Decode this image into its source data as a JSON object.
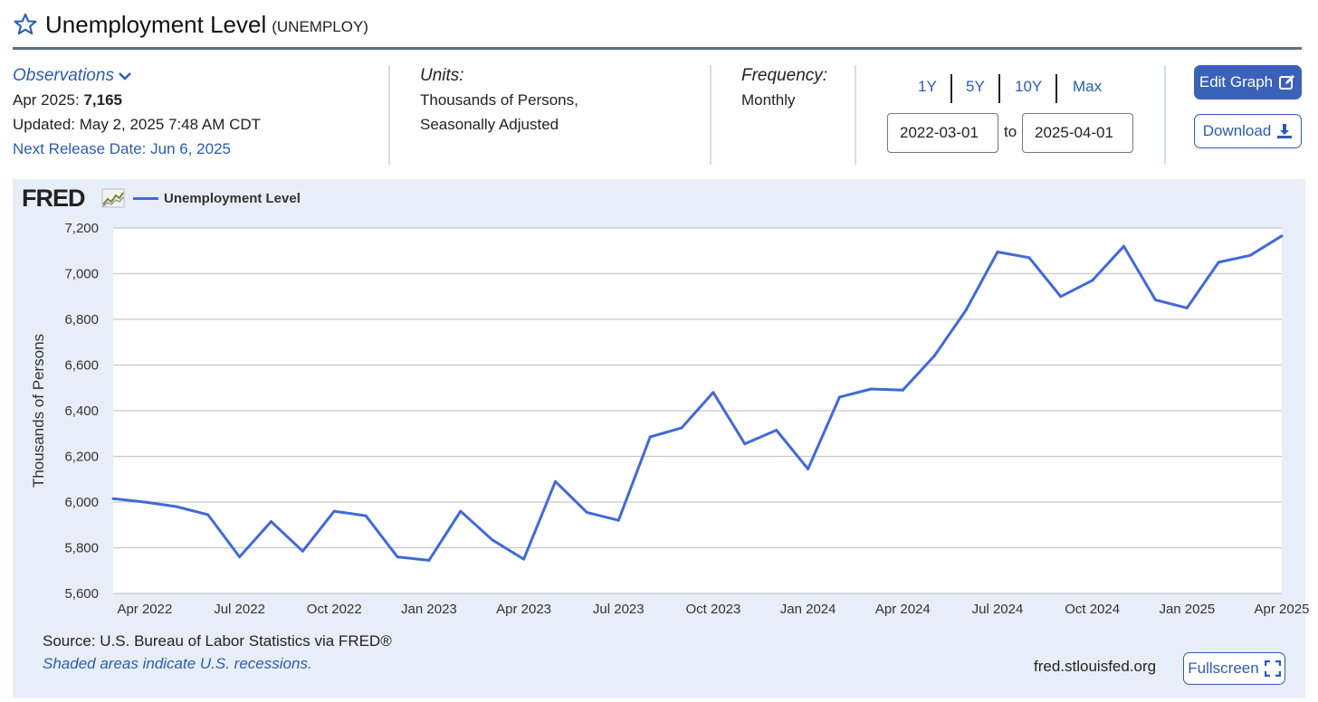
{
  "header": {
    "title": "Unemployment Level",
    "series_id": "(UNEMPLOY)"
  },
  "observations": {
    "link_label": "Observations",
    "latest_label": "Apr 2025:",
    "latest_value": "7,165",
    "updated": "Updated: May 2, 2025 7:48 AM CDT",
    "next_release": "Next Release Date: Jun 6, 2025"
  },
  "units": {
    "heading": "Units:",
    "line1": "Thousands of Persons,",
    "line2": "Seasonally Adjusted"
  },
  "frequency": {
    "heading": "Frequency:",
    "value": "Monthly"
  },
  "range": {
    "buttons": [
      "1Y",
      "5Y",
      "10Y",
      "Max"
    ],
    "start": "2022-03-01",
    "to_label": "to",
    "end": "2025-04-01"
  },
  "actions": {
    "edit_label": "Edit Graph",
    "download_label": "Download",
    "fullscreen_label": "Fullscreen"
  },
  "footer": {
    "source": "Source: U.S. Bureau of Labor Statistics via FRED®",
    "shaded": "Shaded areas indicate U.S. recessions.",
    "url": "fred.stlouisfed.org"
  },
  "logo_text": "FRED",
  "colors": {
    "series": "#4169d8",
    "panel": "#e8eef8",
    "accent": "#2a5db0"
  },
  "chart_data": {
    "type": "line",
    "title": "",
    "xlabel": "",
    "ylabel": "Thousands of Persons",
    "legend": "top-left",
    "grid": true,
    "ylim": [
      5600,
      7200
    ],
    "yticks": [
      5600,
      5800,
      6000,
      6200,
      6400,
      6600,
      6800,
      7000,
      7200
    ],
    "ytick_labels": [
      "5,600",
      "5,800",
      "6,000",
      "6,200",
      "6,400",
      "6,600",
      "6,800",
      "7,000",
      "7,200"
    ],
    "xlim": [
      "2022-03",
      "2025-04"
    ],
    "xticks": [
      "2022-04",
      "2022-07",
      "2022-10",
      "2023-01",
      "2023-04",
      "2023-07",
      "2023-10",
      "2024-01",
      "2024-04",
      "2024-07",
      "2024-10",
      "2025-01",
      "2025-04"
    ],
    "xtick_labels": [
      "Apr 2022",
      "Jul 2022",
      "Oct 2022",
      "Jan 2023",
      "Apr 2023",
      "Jul 2023",
      "Oct 2023",
      "Jan 2024",
      "Apr 2024",
      "Jul 2024",
      "Oct 2024",
      "Jan 2025",
      "Apr 2025"
    ],
    "series": [
      {
        "name": "Unemployment Level",
        "x": [
          "2022-03",
          "2022-04",
          "2022-05",
          "2022-06",
          "2022-07",
          "2022-08",
          "2022-09",
          "2022-10",
          "2022-11",
          "2022-12",
          "2023-01",
          "2023-02",
          "2023-03",
          "2023-04",
          "2023-05",
          "2023-06",
          "2023-07",
          "2023-08",
          "2023-09",
          "2023-10",
          "2023-11",
          "2023-12",
          "2024-01",
          "2024-02",
          "2024-03",
          "2024-04",
          "2024-05",
          "2024-06",
          "2024-07",
          "2024-08",
          "2024-09",
          "2024-10",
          "2024-11",
          "2024-12",
          "2025-01",
          "2025-02",
          "2025-03",
          "2025-04"
        ],
        "values": [
          6015,
          6000,
          5980,
          5945,
          5760,
          5915,
          5785,
          5960,
          5940,
          5760,
          5745,
          5960,
          5835,
          5750,
          6090,
          5955,
          5920,
          6285,
          6325,
          6480,
          6255,
          6315,
          6145,
          6460,
          6495,
          6490,
          6640,
          6840,
          7095,
          7070,
          6900,
          6970,
          7120,
          6885,
          6850,
          7050,
          7080,
          7165
        ]
      }
    ]
  }
}
